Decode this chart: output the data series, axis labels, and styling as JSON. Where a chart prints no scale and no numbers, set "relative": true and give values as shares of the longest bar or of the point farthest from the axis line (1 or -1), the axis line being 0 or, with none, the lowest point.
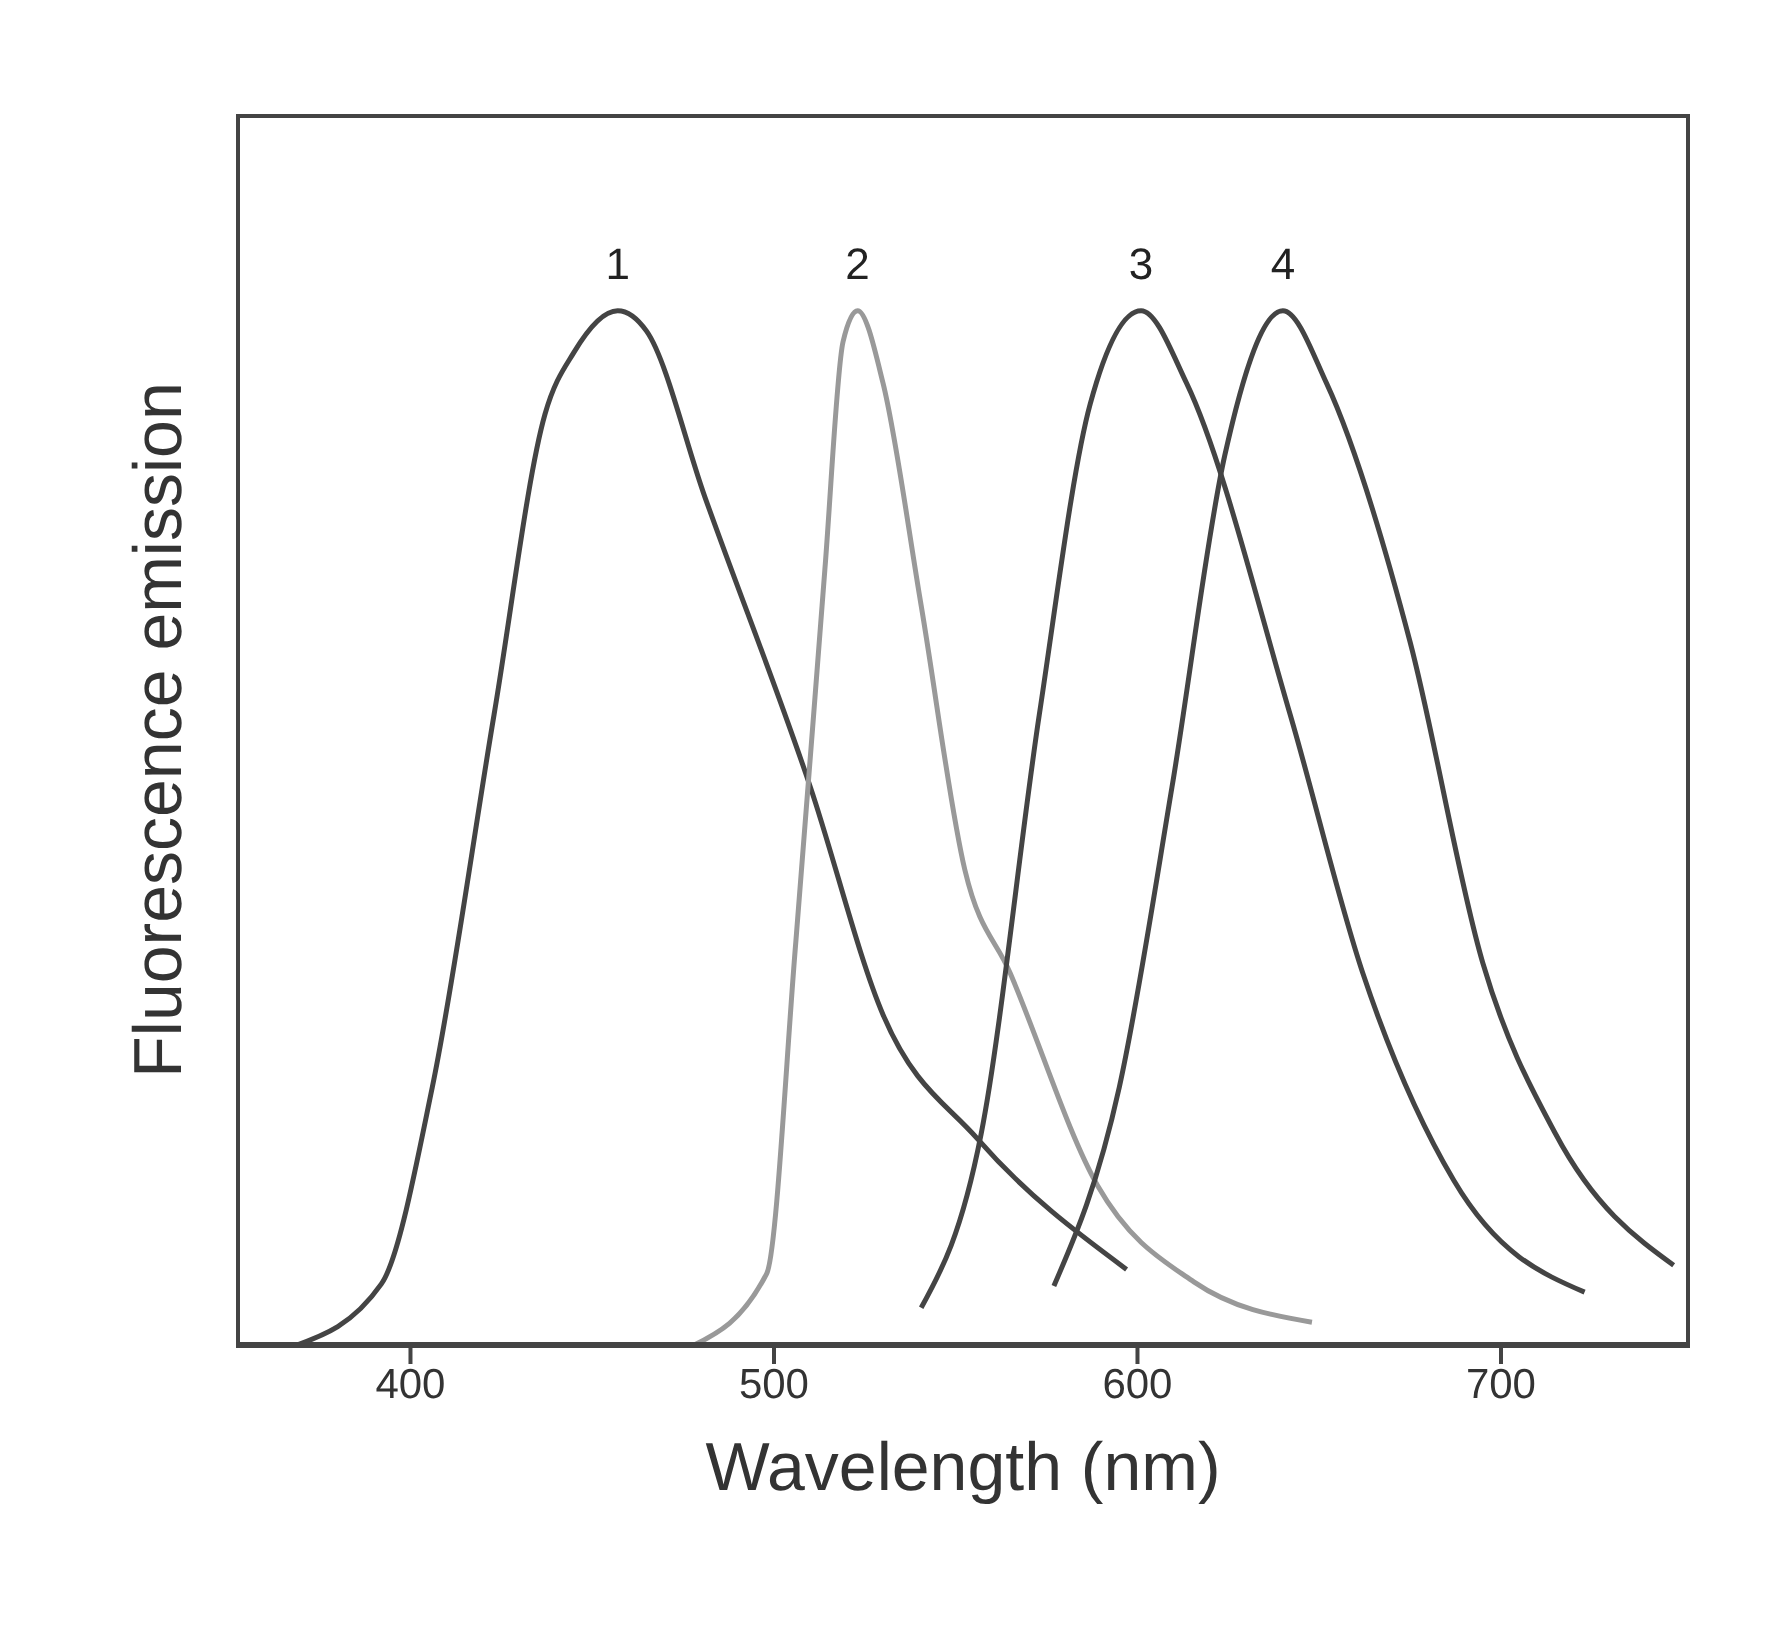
{
  "chart_data": {
    "type": "line",
    "relative": true,
    "xlabel": "Wavelength (nm)",
    "ylabel": "Fluorescence emission",
    "xlim": [
      352,
      752
    ],
    "xticks": [
      400,
      500,
      600,
      700
    ],
    "grid": false,
    "legend": false,
    "marker": "none",
    "line_style": "solid",
    "series": [
      {
        "name": "1",
        "color": "#444444",
        "x": [
          368,
          392,
          406,
          423,
          437,
          445,
          457,
          465,
          481,
          510,
          530,
          556,
          597
        ],
        "values": [
          0,
          0.06,
          0.25,
          0.61,
          0.9,
          0.96,
          1,
          0.98,
          0.82,
          0.54,
          0.32,
          0.2,
          0.074
        ]
      },
      {
        "name": "2",
        "color": "#999999",
        "x": [
          477.5,
          498,
          506,
          514,
          519,
          523,
          530,
          540.5,
          552.5,
          565,
          589,
          615.5,
          648
        ],
        "values": [
          0,
          0.07,
          0.39,
          0.75,
          0.97,
          1,
          0.93,
          0.715,
          0.46,
          0.36,
          0.155,
          0.062,
          0.023
        ]
      },
      {
        "name": "3",
        "color": "#444444",
        "x": [
          540.5,
          557,
          573,
          587,
          601,
          613.5,
          642,
          662,
          687,
          723
        ],
        "values": [
          0.037,
          0.205,
          0.61,
          0.91,
          1,
          0.93,
          0.61,
          0.36,
          0.16,
          0.052
        ]
      },
      {
        "name": "4",
        "color": "#444444",
        "x": [
          577,
          595,
          609.5,
          624,
          640,
          652,
          675,
          695,
          715,
          747.5
        ],
        "values": [
          0.058,
          0.25,
          0.54,
          0.86,
          1,
          0.93,
          0.68,
          0.37,
          0.205,
          0.078
        ]
      }
    ]
  }
}
